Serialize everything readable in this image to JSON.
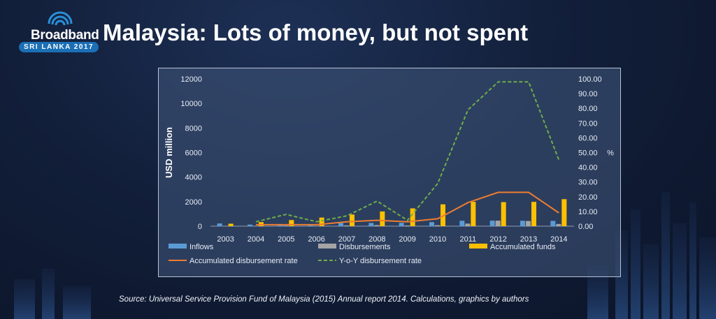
{
  "slide": {
    "title": "Malaysia: Lots of money, but not spent",
    "source": "Source: Universal Service Provision Fund of Malaysia (2015) Annual report 2014. Calculations, graphics by authors"
  },
  "logo": {
    "word": "Broadband",
    "sub": "SRI LANKA 2017"
  },
  "colors": {
    "inflows": "#5b9bd5",
    "disbursements": "#a5a5a5",
    "accumulated_funds": "#ffc000",
    "accumulated_rate": "#ed7d31",
    "yoy_rate": "#70ad47"
  },
  "chart_data": {
    "type": "bar",
    "categories": [
      "2003",
      "2004",
      "2005",
      "2006",
      "2007",
      "2008",
      "2009",
      "2010",
      "2011",
      "2012",
      "2013",
      "2014"
    ],
    "ylabel": "USD million",
    "y2label": "%",
    "ylim": [
      0,
      12000
    ],
    "y2lim": [
      0,
      100
    ],
    "yticks": [
      "0",
      "2000",
      "4000",
      "6000",
      "8000",
      "10000",
      "12000"
    ],
    "y2ticks": [
      "0.00",
      "10.00",
      "20.00",
      "30.00",
      "40.00",
      "50.00",
      "60.00",
      "70.00",
      "80.00",
      "90.00",
      "100.00"
    ],
    "legend_position": "bottom",
    "series": [
      {
        "name": "Inflows",
        "kind": "bar",
        "axis": "left",
        "values": [
          220,
          130,
          160,
          140,
          250,
          260,
          270,
          330,
          440,
          450,
          440,
          430
        ]
      },
      {
        "name": "Disbursements",
        "kind": "bar",
        "axis": "left",
        "values": [
          20,
          30,
          50,
          30,
          60,
          90,
          60,
          80,
          210,
          450,
          420,
          180
        ]
      },
      {
        "name": "Accumulated funds",
        "kind": "bar",
        "axis": "left",
        "values": [
          200,
          330,
          500,
          700,
          950,
          1200,
          1450,
          1780,
          1980,
          1960,
          1980,
          2200
        ]
      },
      {
        "name": "Accumulated disbursement rate",
        "kind": "line",
        "dash": "solid",
        "axis": "right",
        "values": [
          null,
          1,
          1,
          1,
          3,
          4,
          3,
          5,
          16,
          23,
          23,
          9
        ]
      },
      {
        "name": "Y-o-Y disbursement rate",
        "kind": "line",
        "dash": "dashed",
        "axis": "right",
        "values": [
          null,
          3,
          8,
          3,
          7,
          17,
          4,
          29,
          79,
          98,
          98,
          45
        ]
      }
    ]
  }
}
